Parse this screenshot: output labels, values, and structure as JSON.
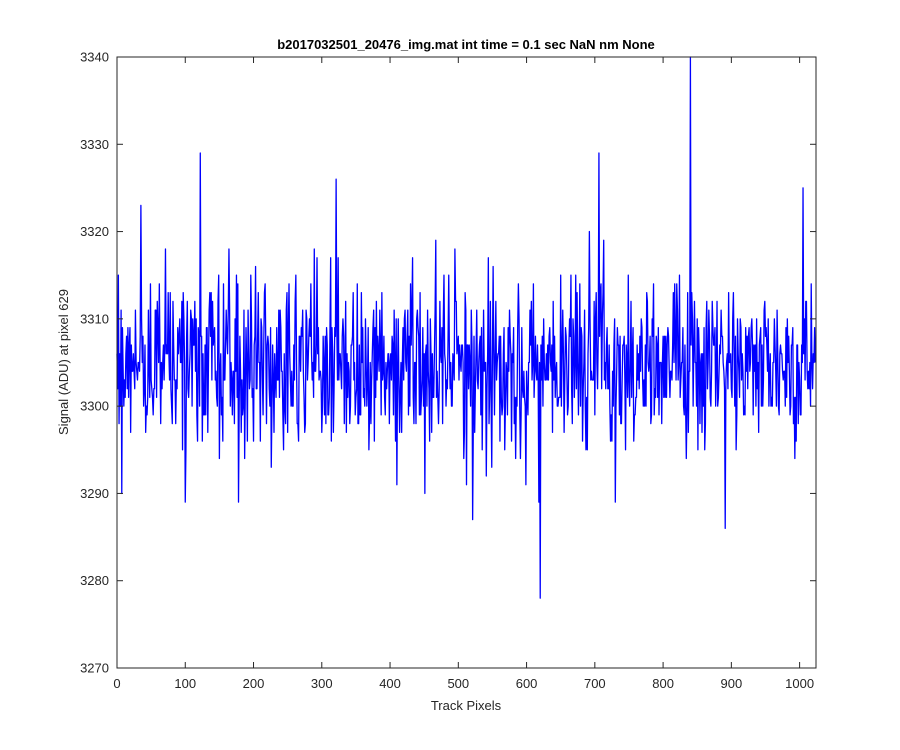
{
  "chart_data": {
    "type": "line",
    "title": "b2017032501_20476_img.mat int time = 0.1 sec  NaN nm None",
    "xlabel": "Track Pixels",
    "ylabel": "Signal (ADU) at pixel 629",
    "xlim": [
      0,
      1024
    ],
    "ylim": [
      3270,
      3340
    ],
    "xticks": [
      0,
      100,
      200,
      300,
      400,
      500,
      600,
      700,
      800,
      900,
      1000
    ],
    "yticks": [
      3270,
      3280,
      3290,
      3300,
      3310,
      3320,
      3330,
      3340
    ],
    "grid": false,
    "box": true,
    "line_color": "#0000ff",
    "series": [
      {
        "noise_parameters": {
          "mean": 3305,
          "spread": 5,
          "n_points": 1024
        },
        "notable_points": [
          {
            "x": 7,
            "y": 3290
          },
          {
            "x": 35,
            "y": 3323
          },
          {
            "x": 100,
            "y": 3289
          },
          {
            "x": 122,
            "y": 3329
          },
          {
            "x": 178,
            "y": 3289
          },
          {
            "x": 321,
            "y": 3326
          },
          {
            "x": 451,
            "y": 3290
          },
          {
            "x": 521,
            "y": 3287
          },
          {
            "x": 599,
            "y": 3291
          },
          {
            "x": 618,
            "y": 3289
          },
          {
            "x": 620,
            "y": 3278
          },
          {
            "x": 706,
            "y": 3329
          },
          {
            "x": 730,
            "y": 3289
          },
          {
            "x": 840,
            "y": 3340
          },
          {
            "x": 891,
            "y": 3286
          },
          {
            "x": 1005,
            "y": 3325
          }
        ]
      }
    ]
  }
}
